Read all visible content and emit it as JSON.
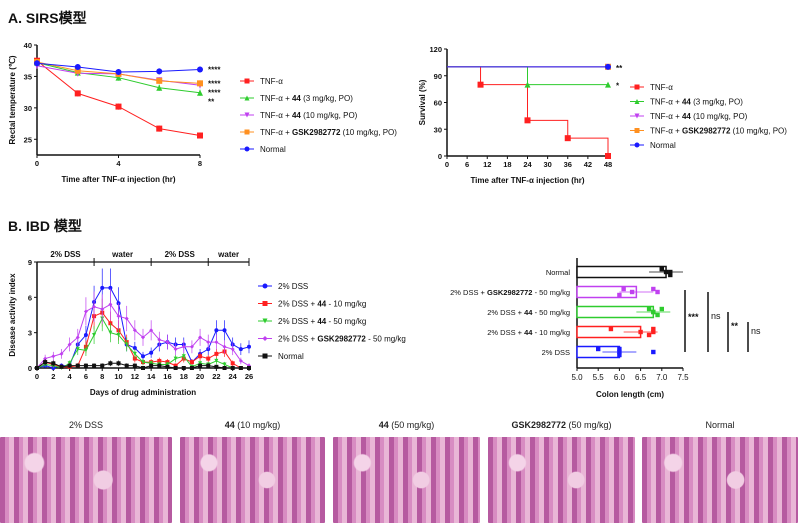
{
  "section_a": {
    "title": "A. SIRS模型"
  },
  "section_b": {
    "title": "B. IBD 模型"
  },
  "chart_data": [
    {
      "type": "line",
      "ylabel": "Rectal temperature (℃)",
      "xlabel": "Time after TNF-α injection (hr)",
      "xlim": [
        0,
        8
      ],
      "ylim": [
        22.5,
        40
      ],
      "xticks": [
        0,
        4,
        8
      ],
      "yticks": [
        25,
        30,
        35,
        40
      ],
      "x": [
        0,
        2,
        4,
        6,
        8
      ],
      "legend": "right",
      "series": [
        {
          "name": "TNF-α",
          "color": "#ff2020",
          "marker": "square",
          "values": [
            37.5,
            32.3,
            30.2,
            26.7,
            25.6
          ],
          "sig": ""
        },
        {
          "name": "TNF-α + 44 (3 mg/kg, PO)",
          "bold": "44",
          "color": "#2ecc2e",
          "marker": "triangle-up",
          "values": [
            37.2,
            35.6,
            34.8,
            33.2,
            32.4
          ],
          "sig": "**"
        },
        {
          "name": "TNF-α + 44 (10 mg/kg, PO)",
          "bold": "44",
          "color": "#c040f0",
          "marker": "triangle-down",
          "values": [
            36.7,
            35.5,
            35.4,
            34.4,
            33.6
          ],
          "sig": "****"
        },
        {
          "name": "TNF-α + GSK2982772 (10 mg/kg, PO)",
          "bold": "GSK2982772",
          "color": "#ff9020",
          "marker": "square",
          "values": [
            37.3,
            35.9,
            35.4,
            34.3,
            33.9
          ],
          "sig": "****"
        },
        {
          "name": "Normal",
          "color": "#1a1aff",
          "marker": "circle",
          "values": [
            37.1,
            36.5,
            35.7,
            35.8,
            36.1
          ],
          "sig": "****"
        }
      ]
    },
    {
      "type": "line",
      "step": true,
      "ylabel": "Survival (%)",
      "xlabel": "Time after TNF-α injection (hr)",
      "xlim": [
        0,
        48
      ],
      "ylim": [
        0,
        120
      ],
      "xticks": [
        0,
        6,
        12,
        18,
        24,
        30,
        36,
        42,
        48
      ],
      "yticks": [
        0,
        30,
        60,
        90,
        120
      ],
      "legend": "right",
      "series": [
        {
          "name": "TNF-α",
          "color": "#ff2020",
          "marker": "square",
          "points": [
            [
              0,
              100
            ],
            [
              10,
              80
            ],
            [
              24,
              40
            ],
            [
              36,
              20
            ],
            [
              48,
              0
            ]
          ],
          "sig": ""
        },
        {
          "name": "TNF-α + 44 (3 mg/kg, PO)",
          "bold": "44",
          "color": "#2ecc2e",
          "marker": "triangle-up",
          "points": [
            [
              0,
              100
            ],
            [
              24,
              80
            ],
            [
              48,
              80
            ]
          ],
          "sig": "*"
        },
        {
          "name": "TNF-α + 44 (10 mg/kg, PO)",
          "bold": "44",
          "color": "#c040f0",
          "marker": "triangle-down",
          "points": [
            [
              0,
              100
            ],
            [
              48,
              100
            ]
          ],
          "sig": ""
        },
        {
          "name": "TNF-α + GSK2982772 (10 mg/kg, PO)",
          "bold": "GSK2982772",
          "color": "#ff9020",
          "marker": "square",
          "points": [
            [
              0,
              100
            ],
            [
              48,
              100
            ]
          ],
          "sig": ""
        },
        {
          "name": "Normal",
          "color": "#1a1aff",
          "marker": "circle",
          "points": [
            [
              0,
              100
            ],
            [
              48,
              100
            ]
          ],
          "sig": "**"
        }
      ]
    },
    {
      "type": "line",
      "ylabel": "Disease activity index",
      "xlabel": "Days of drug administration",
      "xlim": [
        0,
        26
      ],
      "ylim": [
        0,
        9
      ],
      "xticks": [
        0,
        2,
        4,
        6,
        8,
        10,
        12,
        14,
        16,
        18,
        20,
        22,
        24,
        26
      ],
      "yticks": [
        0,
        3,
        6,
        9
      ],
      "legend": "right",
      "periods": [
        {
          "label": "2% DSS",
          "from": 0,
          "to": 7
        },
        {
          "label": "water",
          "from": 7,
          "to": 14
        },
        {
          "label": "2% DSS",
          "from": 14,
          "to": 21
        },
        {
          "label": "water",
          "from": 21,
          "to": 26
        }
      ],
      "series": [
        {
          "name": "2% DSS",
          "color": "#1a1aff",
          "marker": "circle",
          "values": [
            0,
            0.2,
            0,
            0.2,
            0.2,
            2,
            2.8,
            5.6,
            6.8,
            6.8,
            5.5,
            2,
            1.7,
            1,
            1.3,
            2,
            2.2,
            2,
            2,
            0.5,
            1.2,
            1.6,
            3.2,
            3.2,
            2,
            1.6,
            1.8
          ]
        },
        {
          "name": "2% DSS + 44 - 10 mg/kg",
          "bold": "44",
          "color": "#ff2020",
          "marker": "square",
          "values": [
            0,
            0.5,
            0.3,
            0.1,
            0.1,
            0.2,
            1.8,
            4.4,
            4.7,
            3.8,
            3.2,
            2.2,
            0.8,
            0.5,
            0.5,
            0.6,
            0.5,
            0.2,
            0.8,
            0.5,
            1,
            0.8,
            1.2,
            1.4,
            0.4,
            0,
            0
          ]
        },
        {
          "name": "2% DSS + 44 - 50 mg/kg",
          "bold": "44",
          "color": "#2ecc2e",
          "marker": "triangle-down",
          "values": [
            0,
            0.3,
            0.2,
            0,
            0.4,
            1.6,
            1.5,
            2.8,
            4.2,
            3,
            2.8,
            2,
            1.2,
            0.5,
            0.4,
            0.3,
            0.3,
            0.8,
            1,
            0.1,
            0.4,
            0.3,
            0.6,
            0.3,
            0,
            0,
            0
          ]
        },
        {
          "name": "2% DSS + GSK2982772 - 50 mg/kg",
          "bold": "GSK2982772",
          "color": "#c040f0",
          "marker": "diamond",
          "values": [
            0,
            0.8,
            1,
            1.2,
            2,
            2.6,
            4.8,
            5.2,
            5,
            5.4,
            4.4,
            4.2,
            3.2,
            2.6,
            3.2,
            2.4,
            2.2,
            1.6,
            1.8,
            1.8,
            2.6,
            2.2,
            2.2,
            1.8,
            1.6,
            0.6,
            0.2
          ]
        },
        {
          "name": "Normal",
          "color": "#111111",
          "marker": "square",
          "values": [
            0,
            0.5,
            0.4,
            0.1,
            0.2,
            0.2,
            0.2,
            0.2,
            0.2,
            0.4,
            0.4,
            0.2,
            0.2,
            0,
            0.2,
            0.2,
            0.1,
            0,
            0,
            0,
            0.2,
            0.2,
            0.1,
            0,
            0,
            0,
            0
          ]
        }
      ]
    },
    {
      "type": "bar",
      "orientation": "horizontal",
      "xlabel": "Colon length (cm)",
      "xlim": [
        5.0,
        7.5
      ],
      "xticks": [
        "5.0",
        "5.5",
        "6.0",
        "6.5",
        "7.0",
        "7.5"
      ],
      "categories": [
        "Normal",
        "2% DSS + GSK2982772 - 50 mg/kg",
        "2% DSS + 44 - 50 mg/kg",
        "2% DSS + 44 - 10 mg/kg",
        "2% DSS"
      ],
      "bolds": [
        "",
        "GSK2982772",
        "44",
        "44",
        ""
      ],
      "colors": [
        "#111111",
        "#c040f0",
        "#2ecc2e",
        "#ff2020",
        "#1a1aff"
      ],
      "values": [
        7.1,
        6.4,
        6.8,
        6.5,
        6.0
      ],
      "points": [
        [
          7.0,
          7.1,
          7.2,
          7.0,
          7.2
        ],
        [
          6.1,
          6.3,
          6.0,
          6.8,
          6.9
        ],
        [
          6.7,
          6.8,
          6.9,
          7.0,
          6.8
        ],
        [
          5.8,
          6.5,
          6.7,
          6.8,
          6.8
        ],
        [
          5.5,
          6.0,
          6.0,
          6.0,
          6.8
        ]
      ],
      "brackets": [
        "***",
        "ns",
        "**",
        "ns"
      ]
    }
  ],
  "histology": {
    "labels": [
      {
        "pre": "",
        "bold": "",
        "post": "2% DSS"
      },
      {
        "pre": "",
        "bold": "44",
        "post": " (10 mg/kg)"
      },
      {
        "pre": "",
        "bold": "44",
        "post": " (50 mg/kg)"
      },
      {
        "pre": "",
        "bold": "GSK2982772",
        "post": " (50 mg/kg)"
      },
      {
        "pre": "",
        "bold": "",
        "post": "Normal"
      }
    ]
  }
}
